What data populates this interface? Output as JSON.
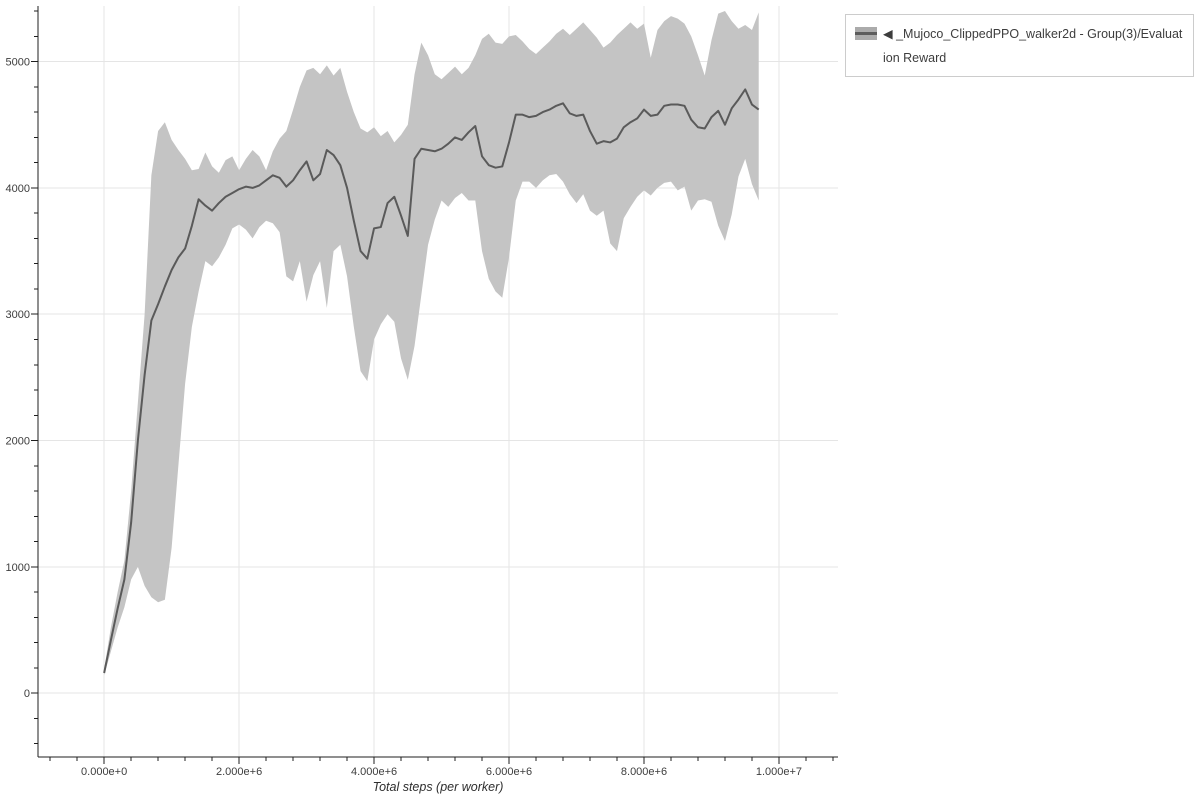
{
  "legend": {
    "collapse_icon": "◀",
    "label": "_Mujoco_ClippedPPO_walker2d - Group(3)/Evaluation Reward"
  },
  "colors": {
    "band": "#c4c4c4",
    "mean_line": "#5a5a5a",
    "grid": "#e5e5e5",
    "axis": "#1f1f1f",
    "tick_label": "#3d3d3d"
  },
  "chart_data": {
    "type": "line",
    "title": "",
    "xlabel": "Total steps (per worker)",
    "ylabel": "",
    "grid": true,
    "legend_position": "top-right-outside",
    "series_name": "◀ _Mujoco_ClippedPPO_walker2d - Group(3)/Evaluation Reward",
    "x_axis_range": [
      -980000,
      10875000
    ],
    "y_axis_range": [
      -505,
      5440
    ],
    "x_ticks": [
      {
        "label": "0.000e+0",
        "value": 0
      },
      {
        "label": "2.000e+6",
        "value": 2000000
      },
      {
        "label": "4.000e+6",
        "value": 4000000
      },
      {
        "label": "6.000e+6",
        "value": 6000000
      },
      {
        "label": "8.000e+6",
        "value": 8000000
      },
      {
        "label": "1.000e+7",
        "value": 10000000
      }
    ],
    "y_ticks": [
      {
        "label": "0",
        "value": 0
      },
      {
        "label": "1000",
        "value": 1000
      },
      {
        "label": "2000",
        "value": 2000
      },
      {
        "label": "3000",
        "value": 3000
      },
      {
        "label": "4000",
        "value": 4000
      },
      {
        "label": "5000",
        "value": 5000
      }
    ],
    "x_minor_tick_interval": 400000,
    "y_minor_tick_interval": 200,
    "x_start": 0,
    "x_interval": 100000,
    "mean": [
      160,
      420,
      670,
      900,
      1350,
      2000,
      2520,
      2950,
      3080,
      3220,
      3350,
      3450,
      3520,
      3700,
      3910,
      3860,
      3820,
      3880,
      3930,
      3960,
      3990,
      4010,
      4000,
      4020,
      4060,
      4100,
      4080,
      4010,
      4060,
      4140,
      4210,
      4060,
      4110,
      4300,
      4260,
      4180,
      4000,
      3740,
      3500,
      3440,
      3680,
      3690,
      3880,
      3930,
      3780,
      3620,
      4230,
      4310,
      4300,
      4290,
      4310,
      4350,
      4400,
      4380,
      4440,
      4490,
      4250,
      4180,
      4160,
      4170,
      4360,
      4580,
      4580,
      4560,
      4570,
      4600,
      4620,
      4650,
      4670,
      4590,
      4570,
      4580,
      4450,
      4350,
      4370,
      4360,
      4390,
      4480,
      4520,
      4550,
      4620,
      4570,
      4580,
      4650,
      4660,
      4660,
      4650,
      4540,
      4480,
      4470,
      4560,
      4610,
      4500,
      4630,
      4700,
      4780,
      4660,
      4620
    ],
    "band_lower": [
      140,
      330,
      520,
      680,
      900,
      1000,
      850,
      760,
      720,
      740,
      1150,
      1800,
      2450,
      2900,
      3180,
      3420,
      3380,
      3450,
      3550,
      3680,
      3710,
      3670,
      3600,
      3690,
      3740,
      3720,
      3650,
      3300,
      3260,
      3420,
      3100,
      3310,
      3420,
      3050,
      3500,
      3550,
      3300,
      2900,
      2550,
      2470,
      2800,
      2920,
      3000,
      2940,
      2650,
      2480,
      2750,
      3150,
      3550,
      3750,
      3900,
      3850,
      3920,
      3960,
      3900,
      3900,
      3500,
      3280,
      3180,
      3130,
      3450,
      3900,
      4050,
      4050,
      4000,
      4060,
      4100,
      4110,
      4050,
      3950,
      3880,
      3950,
      3820,
      3780,
      3820,
      3560,
      3500,
      3760,
      3850,
      3930,
      3980,
      3940,
      4000,
      4040,
      4050,
      3980,
      4010,
      3820,
      3900,
      3910,
      3890,
      3700,
      3580,
      3790,
      4090,
      4230,
      4030,
      3900
    ],
    "band_upper": [
      190,
      520,
      800,
      1050,
      1600,
      2300,
      3000,
      4100,
      4450,
      4520,
      4380,
      4300,
      4230,
      4140,
      4150,
      4280,
      4170,
      4120,
      4220,
      4250,
      4140,
      4230,
      4300,
      4250,
      4140,
      4290,
      4390,
      4450,
      4620,
      4800,
      4930,
      4950,
      4900,
      4970,
      4890,
      4950,
      4760,
      4600,
      4470,
      4440,
      4480,
      4410,
      4450,
      4360,
      4420,
      4500,
      4900,
      5150,
      5050,
      4900,
      4860,
      4910,
      4960,
      4900,
      4950,
      5050,
      5180,
      5220,
      5150,
      5140,
      5200,
      5210,
      5160,
      5100,
      5060,
      5110,
      5160,
      5220,
      5260,
      5210,
      5260,
      5310,
      5250,
      5190,
      5110,
      5150,
      5210,
      5260,
      5310,
      5260,
      5300,
      5030,
      5250,
      5320,
      5360,
      5340,
      5300,
      5200,
      5050,
      4890,
      5170,
      5380,
      5400,
      5320,
      5260,
      5290,
      5250,
      5390
    ]
  }
}
